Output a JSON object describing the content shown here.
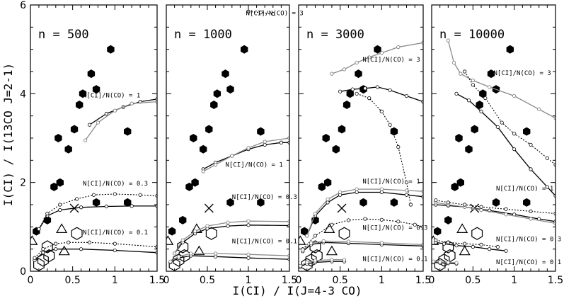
{
  "chart_data": {
    "type": "scatter",
    "xlabel": "I(CI) / I(J=4-3 CO)",
    "ylabel": "I(CI) / I(13CO J=2-1)",
    "xlim": [
      0,
      1.5
    ],
    "ylim": [
      0,
      6
    ],
    "x_ticks": [
      "0",
      "0.5",
      "1",
      "1.5"
    ],
    "y_ticks": [
      "0",
      "2",
      "4",
      "6"
    ],
    "observations": {
      "filled_hexagons": [
        [
          0.07,
          0.9
        ],
        [
          0.2,
          1.15
        ],
        [
          0.28,
          1.9
        ],
        [
          0.35,
          2.0
        ],
        [
          0.33,
          3.0
        ],
        [
          0.45,
          2.75
        ],
        [
          0.52,
          3.2
        ],
        [
          0.58,
          3.75
        ],
        [
          0.62,
          4.0
        ],
        [
          0.72,
          4.45
        ],
        [
          0.78,
          4.1
        ],
        [
          0.95,
          5.0
        ],
        [
          1.15,
          3.15
        ],
        [
          0.78,
          1.55
        ],
        [
          1.15,
          1.55
        ]
      ],
      "open_hexagons": [
        [
          0.1,
          0.15
        ],
        [
          0.2,
          0.55
        ],
        [
          0.55,
          0.85
        ],
        [
          0.15,
          0.25
        ],
        [
          0.22,
          0.35
        ]
      ],
      "open_triangles": [
        [
          0.02,
          0.68
        ],
        [
          0.37,
          0.95
        ],
        [
          0.4,
          0.45
        ]
      ],
      "crosses": [
        [
          0.52,
          1.42
        ]
      ]
    },
    "panels": [
      {
        "label": "n = 500",
        "series": [
          {
            "style": "solid",
            "x": [
              0.7,
              0.9,
              1.1,
              1.3,
              1.5
            ],
            "y": [
              3.3,
              3.55,
              3.7,
              3.82,
              3.88
            ]
          },
          {
            "style": "gray",
            "x": [
              0.65,
              0.8,
              1.0,
              1.2,
              1.5
            ],
            "y": [
              2.95,
              3.35,
              3.62,
              3.78,
              3.82
            ]
          },
          {
            "style": "solid",
            "x": [
              0.1,
              0.2,
              0.35,
              0.6,
              0.9,
              1.2,
              1.5
            ],
            "y": [
              0.95,
              1.25,
              1.38,
              1.44,
              1.46,
              1.47,
              1.47
            ]
          },
          {
            "style": "dotted",
            "x": [
              0.1,
              0.2,
              0.35,
              0.55,
              0.75,
              1.0,
              1.3,
              1.5
            ],
            "y": [
              0.95,
              1.3,
              1.5,
              1.63,
              1.72,
              1.74,
              1.72,
              1.7
            ]
          },
          {
            "style": "solid",
            "x": [
              0.05,
              0.15,
              0.3,
              0.6,
              1.0,
              1.5
            ],
            "y": [
              0.25,
              0.42,
              0.5,
              0.5,
              0.47,
              0.42
            ]
          },
          {
            "style": "dotted",
            "x": [
              0.05,
              0.15,
              0.3,
              0.45,
              0.7,
              1.0,
              1.5
            ],
            "y": [
              0.3,
              0.5,
              0.62,
              0.65,
              0.65,
              0.62,
              0.55
            ]
          }
        ],
        "annotations": [
          {
            "text": "N[CI]/N(CO) = 1",
            "x": 0.62,
            "y": 3.92
          },
          {
            "text": "N[CI]/N(CO) = 0.3",
            "x": 0.62,
            "y": 1.93
          },
          {
            "text": "N[CI]/N(CO) = 0.1",
            "x": 0.62,
            "y": 0.83
          }
        ]
      },
      {
        "label": "n = 1000",
        "series": [
          {
            "style": "dotted",
            "x": [
              1.0,
              1.15,
              1.3
            ],
            "y": [
              5.85,
              5.83,
              5.8
            ]
          },
          {
            "style": "solid",
            "x": [
              0.45,
              0.6,
              0.8,
              1.0,
              1.2,
              1.4,
              1.5
            ],
            "y": [
              2.3,
              2.45,
              2.6,
              2.75,
              2.85,
              2.9,
              2.9
            ]
          },
          {
            "style": "gray",
            "x": [
              0.45,
              0.6,
              0.8,
              1.0,
              1.2,
              1.5
            ],
            "y": [
              2.25,
              2.4,
              2.6,
              2.78,
              2.92,
              3.0
            ]
          },
          {
            "style": "solid",
            "x": [
              0.1,
              0.2,
              0.35,
              0.5,
              0.75,
              1.0,
              1.5
            ],
            "y": [
              0.4,
              0.65,
              0.85,
              0.96,
              1.02,
              1.04,
              1.03
            ]
          },
          {
            "style": "gray",
            "x": [
              0.1,
              0.2,
              0.35,
              0.5,
              0.75,
              1.0,
              1.5
            ],
            "y": [
              0.4,
              0.7,
              0.9,
              1.02,
              1.1,
              1.13,
              1.12
            ]
          },
          {
            "style": "solid",
            "x": [
              0.05,
              0.15,
              0.3,
              0.6,
              1.0,
              1.5
            ],
            "y": [
              0.2,
              0.3,
              0.35,
              0.33,
              0.3,
              0.27
            ]
          },
          {
            "style": "gray",
            "x": [
              0.05,
              0.15,
              0.3,
              0.6,
              1.0,
              1.5
            ],
            "y": [
              0.22,
              0.33,
              0.4,
              0.4,
              0.38,
              0.35
            ]
          }
        ],
        "annotations": [
          {
            "text": "N[CI]/N(CO) = 3",
            "x": 0.97,
            "y": 5.77
          },
          {
            "text": "N[CI]/N(CO) = 1",
            "x": 0.72,
            "y": 2.35
          },
          {
            "text": "N[CI]/N(CO) = 0.3",
            "x": 0.8,
            "y": 1.63
          },
          {
            "text": "N[CI]/N(CO) = 0.1",
            "x": 0.8,
            "y": 0.63
          }
        ]
      },
      {
        "label": "n = 3000",
        "series": [
          {
            "style": "gray",
            "x": [
              0.4,
              0.55,
              0.7,
              0.85,
              1.0,
              1.2,
              1.5
            ],
            "y": [
              4.45,
              4.55,
              4.7,
              4.82,
              4.92,
              5.05,
              5.15
            ]
          },
          {
            "style": "solid",
            "x": [
              0.5,
              0.65,
              0.8,
              0.95,
              1.1,
              1.3,
              1.5
            ],
            "y": [
              4.05,
              4.1,
              4.12,
              4.15,
              4.08,
              3.95,
              3.82
            ]
          },
          {
            "style": "dotted",
            "x": [
              0.7,
              0.85,
              1.0,
              1.1,
              1.2,
              1.3,
              1.35
            ],
            "y": [
              4.0,
              3.9,
              3.6,
              3.3,
              2.8,
              2.0,
              1.5
            ]
          },
          {
            "style": "solid",
            "x": [
              0.1,
              0.2,
              0.35,
              0.5,
              0.7,
              1.0,
              1.3,
              1.5
            ],
            "y": [
              0.8,
              1.25,
              1.55,
              1.72,
              1.78,
              1.78,
              1.72,
              1.68
            ]
          },
          {
            "style": "gray",
            "x": [
              0.1,
              0.2,
              0.35,
              0.5,
              0.7,
              1.0,
              1.3,
              1.5
            ],
            "y": [
              0.8,
              1.3,
              1.62,
              1.78,
              1.85,
              1.85,
              1.82,
              1.8
            ]
          },
          {
            "style": "dotted",
            "x": [
              0.05,
              0.2,
              0.4,
              0.6,
              0.8,
              1.0,
              1.2,
              1.4,
              1.5
            ],
            "y": [
              0.5,
              0.8,
              1.05,
              1.15,
              1.18,
              1.16,
              1.12,
              1.05,
              1.0
            ]
          },
          {
            "style": "solid",
            "x": [
              0.05,
              0.15,
              0.3,
              0.6,
              1.0,
              1.5
            ],
            "y": [
              0.45,
              0.6,
              0.65,
              0.63,
              0.6,
              0.57
            ]
          },
          {
            "style": "gray",
            "x": [
              0.05,
              0.15,
              0.3,
              0.6,
              1.0,
              1.5
            ],
            "y": [
              0.48,
              0.63,
              0.68,
              0.67,
              0.64,
              0.6
            ]
          },
          {
            "style": "solid",
            "x": [
              0.02,
              0.1,
              0.2,
              0.4,
              0.55
            ],
            "y": [
              0.1,
              0.17,
              0.2,
              0.22,
              0.22
            ]
          },
          {
            "style": "gray",
            "x": [
              0.02,
              0.1,
              0.2,
              0.4,
              0.55
            ],
            "y": [
              0.12,
              0.2,
              0.24,
              0.26,
              0.26
            ]
          }
        ],
        "annotations": [
          {
            "text": "N[CI]/N(CO) = 3",
            "x": 0.77,
            "y": 4.72
          },
          {
            "text": "N[CI]/N(CO) = 1",
            "x": 0.77,
            "y": 1.98
          },
          {
            "text": "N[CI]/N(CO) = 0.3",
            "x": 0.77,
            "y": 0.93
          },
          {
            "text": "N[CI]/N(CO) = 0.1",
            "x": 0.77,
            "y": 0.23
          }
        ]
      },
      {
        "label": "n = 10000",
        "series": [
          {
            "style": "gray",
            "x": [
              0.2,
              0.27,
              0.35,
              0.5,
              0.7,
              1.0,
              1.3,
              1.5
            ],
            "y": [
              5.2,
              4.7,
              4.45,
              4.3,
              4.15,
              3.95,
              3.65,
              3.45
            ]
          },
          {
            "style": "dotted",
            "x": [
              0.4,
              0.5,
              0.65,
              0.85,
              1.0,
              1.2,
              1.4,
              1.5
            ],
            "y": [
              4.5,
              4.2,
              3.9,
              3.35,
              3.1,
              2.85,
              2.55,
              2.4
            ]
          },
          {
            "style": "solid",
            "x": [
              0.3,
              0.45,
              0.6,
              0.8,
              1.0,
              1.2,
              1.4,
              1.5
            ],
            "y": [
              4.0,
              3.85,
              3.6,
              3.25,
              2.75,
              2.3,
              1.9,
              1.7
            ]
          },
          {
            "style": "solid",
            "x": [
              0.05,
              0.2,
              0.4,
              0.5,
              0.7,
              1.0,
              1.3,
              1.5
            ],
            "y": [
              1.5,
              1.48,
              1.45,
              1.42,
              1.37,
              1.28,
              1.18,
              1.12
            ]
          },
          {
            "style": "gray",
            "x": [
              0.05,
              0.2,
              0.4,
              0.6,
              0.9,
              1.2,
              1.5
            ],
            "y": [
              1.55,
              1.5,
              1.45,
              1.38,
              1.28,
              1.18,
              1.08
            ]
          },
          {
            "style": "dotted",
            "x": [
              0.05,
              0.2,
              0.4,
              0.6,
              0.9,
              1.2,
              1.5
            ],
            "y": [
              1.6,
              1.55,
              1.5,
              1.45,
              1.4,
              1.35,
              1.3
            ]
          },
          {
            "style": "solid",
            "x": [
              0.05,
              0.15,
              0.3,
              0.5,
              0.7,
              0.9
            ],
            "y": [
              0.65,
              0.62,
              0.58,
              0.55,
              0.5,
              0.46
            ]
          },
          {
            "style": "dotted",
            "x": [
              0.05,
              0.2,
              0.4,
              0.6,
              0.8
            ],
            "y": [
              0.7,
              0.65,
              0.62,
              0.6,
              0.55
            ]
          },
          {
            "style": "solid",
            "x": [
              0.02,
              0.1,
              0.2,
              0.3
            ],
            "y": [
              0.2,
              0.19,
              0.18,
              0.17
            ]
          },
          {
            "style": "gray",
            "x": [
              0.02,
              0.1,
              0.2,
              0.3
            ],
            "y": [
              0.22,
              0.21,
              0.2,
              0.19
            ]
          }
        ],
        "annotations": [
          {
            "text": "N[CI]/N(CO) = 3",
            "x": 0.75,
            "y": 4.42
          },
          {
            "text": "N[CI]/N(CO) = 1",
            "x": 0.78,
            "y": 1.82
          },
          {
            "text": "N[CI]/N(CO) = 0.3",
            "x": 0.78,
            "y": 0.68
          },
          {
            "text": "N[CI]/N(CO) = 0.1",
            "x": 0.78,
            "y": 0.16
          }
        ]
      }
    ]
  }
}
